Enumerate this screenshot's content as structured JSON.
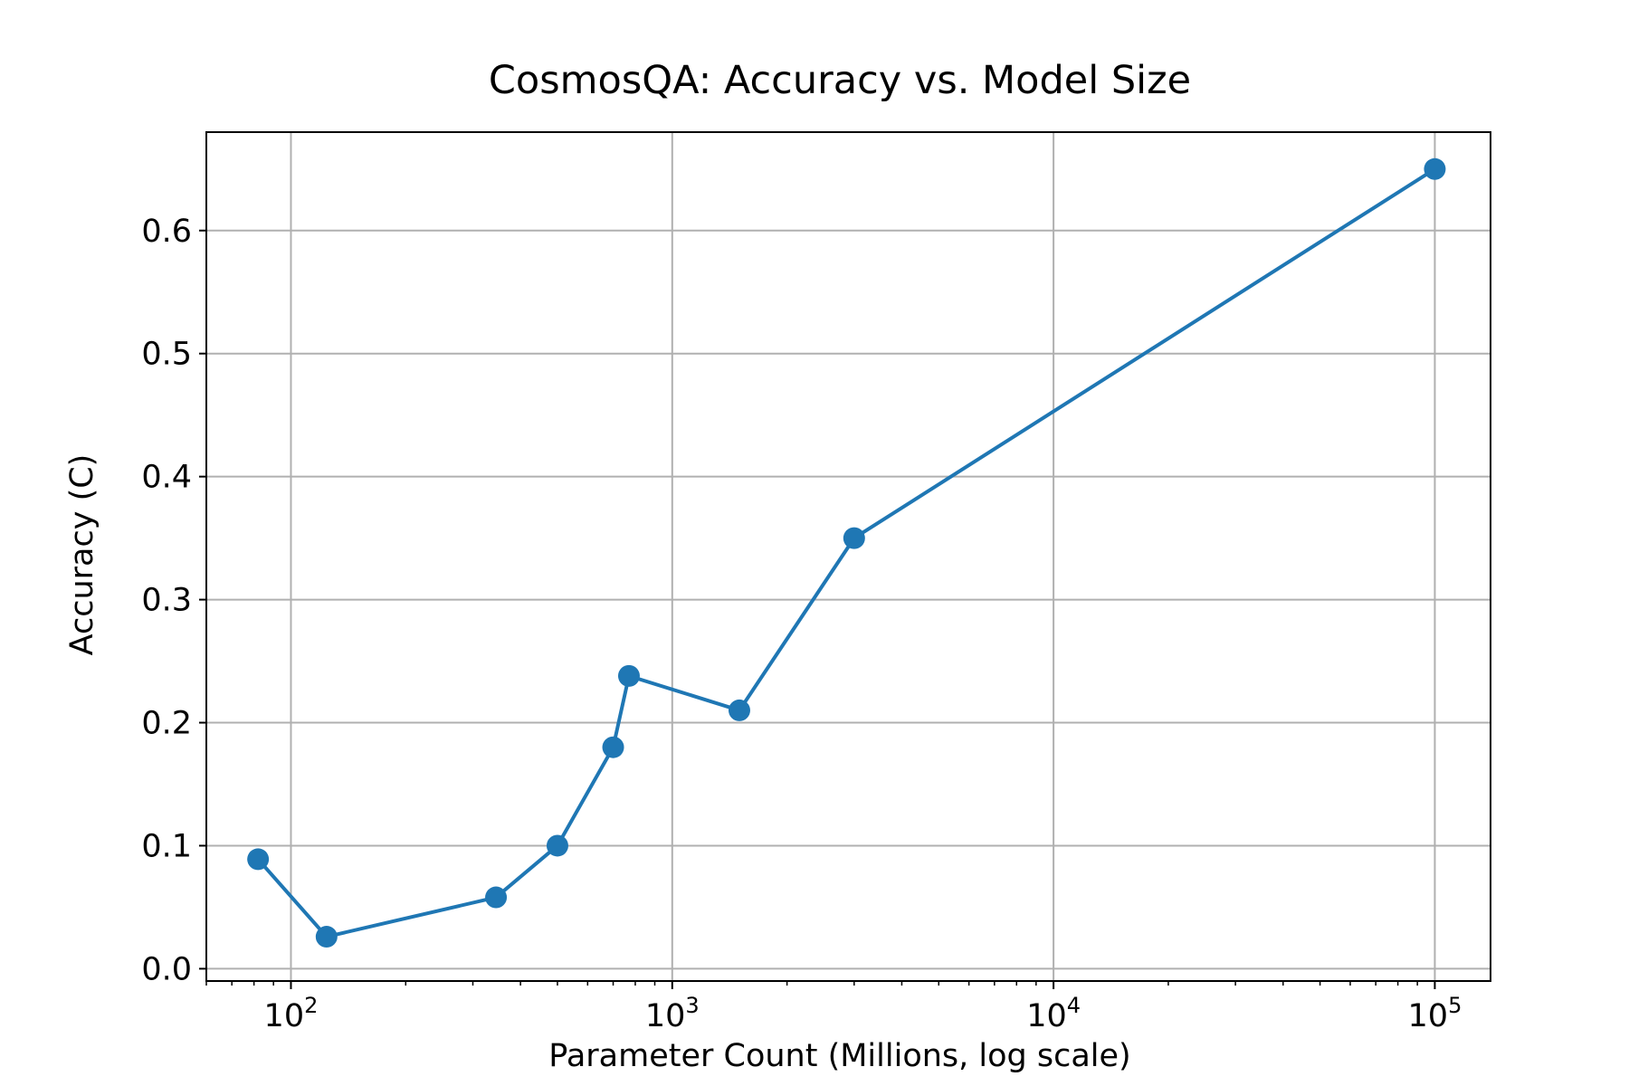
{
  "chart_data": {
    "type": "line",
    "title": "CosmosQA: Accuracy vs. Model Size",
    "xlabel": "Parameter Count (Millions, log scale)",
    "ylabel": "Accuracy (C)",
    "xscale": "log",
    "xlim": [
      60,
      140000
    ],
    "ylim": [
      -0.01,
      0.68
    ],
    "grid": true,
    "marker": "circle",
    "color": "#1f77b4",
    "xticks": [
      {
        "value": 100,
        "base": "10",
        "exp": "2"
      },
      {
        "value": 1000,
        "base": "10",
        "exp": "3"
      },
      {
        "value": 10000,
        "base": "10",
        "exp": "4"
      },
      {
        "value": 100000,
        "base": "10",
        "exp": "5"
      }
    ],
    "yticks": [
      "0.0",
      "0.1",
      "0.2",
      "0.3",
      "0.4",
      "0.5",
      "0.6"
    ],
    "series": [
      {
        "x": [
          82,
          124,
          345,
          500,
          700,
          770,
          1500,
          3000,
          100000
        ],
        "y": [
          0.089,
          0.026,
          0.058,
          0.1,
          0.18,
          0.238,
          0.21,
          0.35,
          0.65
        ]
      }
    ]
  }
}
